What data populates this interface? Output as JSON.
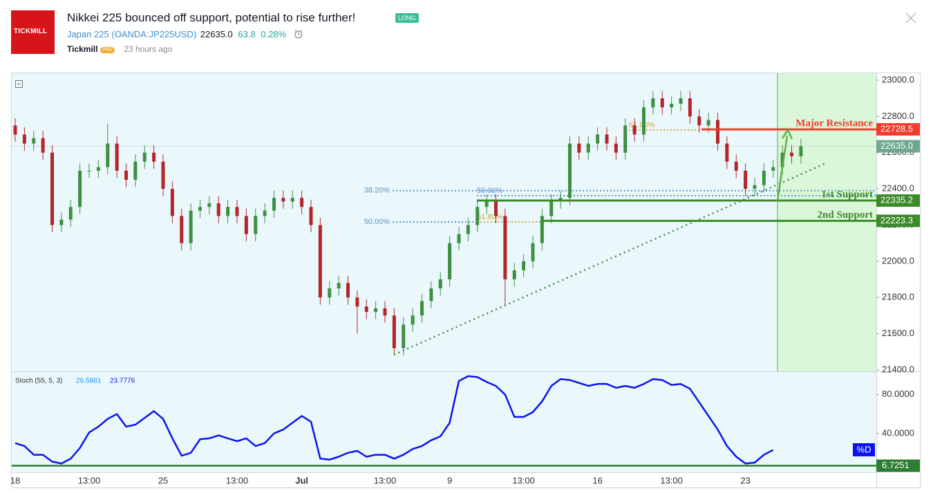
{
  "header": {
    "logo": "TICKMILL",
    "title": "Nikkei 225 bounced off support, potential to rise further!",
    "badge": "LONG",
    "symbol": "Japan 225",
    "ticker": "(OANDA:JP225USD)",
    "price": "22635.0",
    "change": "63.8",
    "change_pct": "0.28%",
    "author": "Tickmill",
    "author_badge": "PRO",
    "time": "23 hours ago"
  },
  "chart_data": [
    {
      "type": "candlestick",
      "up_color": "#3f8f43",
      "down_color": "#b3262b",
      "categories": [
        "18",
        null,
        null,
        null,
        null,
        null,
        null,
        null,
        "13:00",
        null,
        null,
        null,
        null,
        null,
        null,
        null,
        "25",
        null,
        null,
        null,
        null,
        null,
        null,
        null,
        "13:00",
        null,
        null,
        null,
        null,
        null,
        null,
        "Jul",
        null,
        null,
        null,
        null,
        null,
        null,
        null,
        null,
        "13:00",
        null,
        null,
        null,
        null,
        null,
        null,
        "9",
        null,
        null,
        null,
        null,
        null,
        null,
        null,
        "13:00",
        null,
        null,
        null,
        null,
        null,
        null,
        null,
        "16",
        null,
        null,
        null,
        null,
        null,
        null,
        null,
        "13:00",
        null,
        null,
        null,
        null,
        null,
        null,
        null,
        "23",
        null,
        null,
        null,
        null,
        null,
        null
      ],
      "open": [
        22750,
        22700,
        22650,
        22680,
        22600,
        22200,
        22230,
        22300,
        22500,
        22500,
        22520,
        22650,
        22500,
        22450,
        22550,
        22600,
        22550,
        22400,
        22250,
        22100,
        22280,
        22300,
        22320,
        22250,
        22300,
        22250,
        22150,
        22250,
        22280,
        22350,
        22330,
        22350,
        22300,
        22200,
        21800,
        21850,
        21880,
        21800,
        21750,
        21720,
        21740,
        21700,
        21520,
        21650,
        21700,
        21780,
        21850,
        21900,
        22100,
        22150,
        22200,
        22300,
        22330,
        22250,
        21900,
        21950,
        22000,
        22100,
        22250,
        22330,
        22350,
        22650,
        22600,
        22650,
        22700,
        22650,
        22600,
        22750,
        22700,
        22850,
        22900,
        22850,
        22870,
        22900,
        22800,
        22750,
        22780,
        22650,
        22550,
        22500,
        22400,
        22420,
        22500,
        22520,
        22600,
        22580
      ],
      "high": [
        22790,
        22740,
        22720,
        22720,
        22640,
        22270,
        22340,
        22540,
        22540,
        22560,
        22760,
        22690,
        22540,
        22590,
        22640,
        22640,
        22590,
        22440,
        22290,
        22320,
        22340,
        22360,
        22360,
        22340,
        22340,
        22290,
        22290,
        22320,
        22390,
        22390,
        22390,
        22390,
        22340,
        22240,
        21890,
        21920,
        21920,
        21840,
        21790,
        21780,
        21780,
        21740,
        21690,
        21740,
        21820,
        21890,
        21940,
        22140,
        22190,
        22240,
        22340,
        22370,
        22370,
        22290,
        21990,
        22040,
        22140,
        22290,
        22370,
        22390,
        22690,
        22690,
        22690,
        22740,
        22740,
        22690,
        22790,
        22790,
        22890,
        22940,
        22940,
        22910,
        22940,
        22940,
        22840,
        22820,
        22820,
        22690,
        22590,
        22540,
        22460,
        22540,
        22560,
        22640,
        22640,
        22675
      ],
      "low": [
        22660,
        22610,
        22610,
        22560,
        22160,
        22160,
        22190,
        22260,
        22460,
        22460,
        22480,
        22460,
        22410,
        22410,
        22510,
        22510,
        22360,
        22210,
        22060,
        22060,
        22240,
        22260,
        22210,
        22210,
        22210,
        22110,
        22110,
        22210,
        22240,
        22290,
        22290,
        22260,
        22160,
        21760,
        21760,
        21810,
        21760,
        21600,
        21680,
        21680,
        21660,
        21480,
        21480,
        21610,
        21660,
        21740,
        21810,
        21860,
        22060,
        22110,
        22160,
        22260,
        22210,
        21750,
        21860,
        21910,
        21960,
        22060,
        22210,
        22290,
        22310,
        22560,
        22560,
        22610,
        22610,
        22560,
        22560,
        22660,
        22660,
        22810,
        22810,
        22810,
        22830,
        22760,
        22710,
        22710,
        22610,
        22510,
        22460,
        22360,
        22360,
        22380,
        22460,
        22480,
        22540,
        22540
      ],
      "close": [
        22700,
        22650,
        22680,
        22600,
        22200,
        22230,
        22300,
        22500,
        22500,
        22520,
        22650,
        22500,
        22450,
        22550,
        22600,
        22550,
        22400,
        22250,
        22100,
        22280,
        22300,
        22320,
        22250,
        22300,
        22250,
        22150,
        22250,
        22280,
        22350,
        22330,
        22350,
        22300,
        22200,
        21800,
        21850,
        21880,
        21800,
        21750,
        21720,
        21740,
        21700,
        21520,
        21650,
        21700,
        21780,
        21850,
        21900,
        22100,
        22150,
        22200,
        22300,
        22330,
        22250,
        21900,
        21950,
        22000,
        22100,
        22250,
        22330,
        22350,
        22650,
        22600,
        22650,
        22700,
        22650,
        22600,
        22750,
        22700,
        22850,
        22900,
        22850,
        22870,
        22900,
        22800,
        22750,
        22780,
        22650,
        22550,
        22500,
        22400,
        22420,
        22500,
        22520,
        22600,
        22580,
        22635
      ],
      "ylim": [
        21392,
        23042
      ],
      "yticks": [
        {
          "value": 21400,
          "label": "21400.0"
        },
        {
          "value": 21600,
          "label": "21600.0"
        },
        {
          "value": 21800,
          "label": "21800.0"
        },
        {
          "value": 22000,
          "label": "22000.0"
        },
        {
          "value": 22200,
          "label": "22200.0"
        },
        {
          "value": 22400,
          "label": "22400.0"
        },
        {
          "value": 22600,
          "label": "22600.0"
        },
        {
          "value": 22800,
          "label": "22800.0"
        },
        {
          "value": 23000,
          "label": "23000.0"
        }
      ],
      "current_price": {
        "value": 22635,
        "label": "22635.0"
      },
      "levels": [
        {
          "label": "Major Resistance",
          "value": 22728.5,
          "color": "#f23b2e"
        },
        {
          "label": "1st Support",
          "value": 22335.2,
          "color": "#3d8a2a"
        },
        {
          "label": "2nd Support",
          "value": 22223.3,
          "color": "#3d8a2a"
        }
      ],
      "fib_levels": [
        {
          "label": "38.20%",
          "value": 22390,
          "color": "#5a93c9"
        },
        {
          "label": "50.00%",
          "value": 22217,
          "color": "#5a93c9"
        },
        {
          "label": "50.00%",
          "value": 22362,
          "color": "#5a93c9"
        },
        {
          "label": "61.80%",
          "value": 22217,
          "color": "#c9a640"
        },
        {
          "label": "61.80%",
          "value": 22725,
          "color": "#c9a640"
        }
      ]
    },
    {
      "type": "line",
      "title": "Stoch (55, 5, 3)",
      "readouts": [
        26.5881,
        23.7776
      ],
      "series": [
        {
          "name": "%D",
          "color": "#0b12f0",
          "values": [
            30,
            27,
            18,
            18,
            11,
            9,
            14,
            25,
            41,
            47,
            55,
            60,
            47,
            49,
            56,
            63,
            55,
            35,
            17,
            20,
            34,
            35,
            38,
            35,
            32,
            35,
            27,
            30,
            40,
            44,
            51,
            58,
            52,
            14,
            13,
            16,
            20,
            22,
            16,
            18,
            18,
            14,
            18,
            24,
            27,
            33,
            37,
            51,
            94,
            99,
            98,
            93,
            89,
            80,
            57,
            57,
            62,
            73,
            89,
            96,
            95,
            92,
            89,
            91,
            91,
            87,
            89,
            87,
            91,
            96,
            95,
            90,
            91,
            86,
            72,
            58,
            44,
            27,
            16,
            9,
            10,
            18,
            23,
            null,
            null,
            null
          ]
        }
      ],
      "level": 6.7251,
      "ylim": [
        0,
        104
      ],
      "yticks": [
        {
          "value": 40,
          "label": "40.0000"
        },
        {
          "value": 80,
          "label": "80.0000"
        }
      ]
    }
  ]
}
